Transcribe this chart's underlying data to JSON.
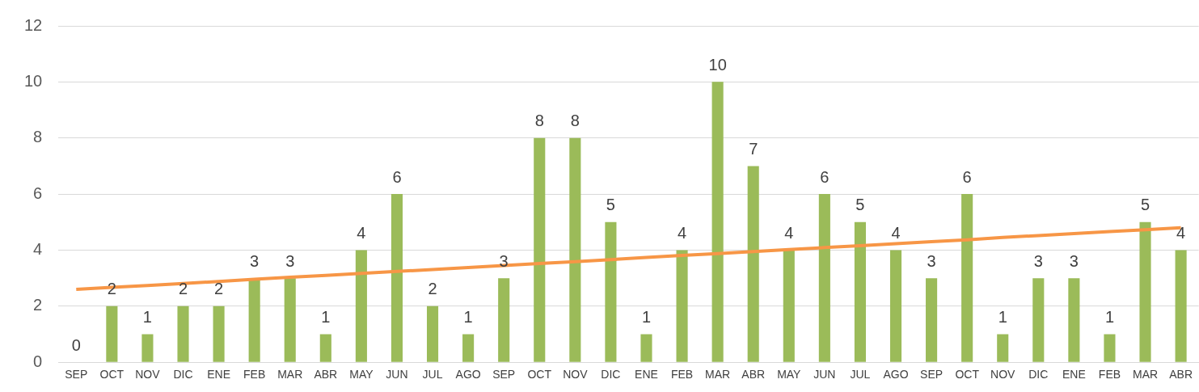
{
  "chart_data": {
    "type": "bar",
    "categories": [
      "SEP",
      "OCT",
      "NOV",
      "DIC",
      "ENE",
      "FEB",
      "MAR",
      "ABR",
      "MAY",
      "JUN",
      "JUL",
      "AGO",
      "SEP",
      "OCT",
      "NOV",
      "DIC",
      "ENE",
      "FEB",
      "MAR",
      "ABR",
      "MAY",
      "JUN",
      "JUL",
      "AGO",
      "SEP",
      "OCT",
      "NOV",
      "DIC",
      "ENE",
      "FEB",
      "MAR",
      "ABR"
    ],
    "series": [
      {
        "color": "#9bbb59",
        "values": [
          0,
          2,
          1,
          2,
          2,
          3,
          3,
          1,
          4,
          6,
          2,
          1,
          3,
          8,
          8,
          5,
          1,
          4,
          10,
          7,
          4,
          6,
          5,
          4,
          3,
          6,
          1,
          3,
          3,
          1,
          5,
          4
        ],
        "value_labels": [
          "0",
          "2",
          "1",
          "2",
          "2",
          "3",
          "3",
          "1",
          "4",
          "6",
          "2",
          "1",
          "3",
          "8",
          "8",
          "5",
          "1",
          "4",
          "10",
          "7",
          "4",
          "6",
          "5",
          "4",
          "3",
          "6",
          "1",
          "3",
          "3",
          "1",
          "5",
          "4"
        ]
      },
      {
        "type": "line",
        "color": "#f79646",
        "values": [
          2.6,
          2.67,
          2.74,
          2.81,
          2.88,
          2.96,
          3.03,
          3.1,
          3.17,
          3.24,
          3.31,
          3.38,
          3.45,
          3.52,
          3.59,
          3.66,
          3.74,
          3.81,
          3.88,
          3.95,
          4.02,
          4.09,
          4.16,
          4.23,
          4.3,
          4.37,
          4.45,
          4.52,
          4.59,
          4.66,
          4.73,
          4.8
        ]
      }
    ],
    "ylim": [
      0,
      12
    ],
    "yticks": [
      0,
      2,
      4,
      6,
      8,
      10,
      12
    ],
    "grid": "y",
    "legend": false,
    "marker": "none",
    "line_style": "solid"
  }
}
